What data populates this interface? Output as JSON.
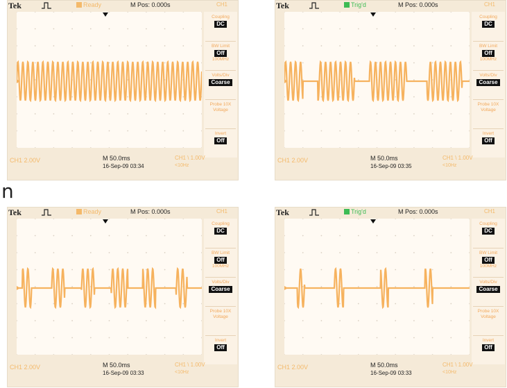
{
  "side_letter": "n",
  "colors": {
    "trace": "#f6b25e",
    "grid_dots": "#d9cfc2",
    "trig_ready": "#f4b96a",
    "trig_triggered": "#3dbb54"
  },
  "scopes": [
    {
      "brand": "Tek",
      "trigger_status": "Ready",
      "trigger_state": "ready",
      "mpos": "M Pos: 0.000s",
      "ch_title": "CH1",
      "menu": [
        {
          "label": "Coupling",
          "value": "DC"
        },
        {
          "label": "BW Limit",
          "value": "Off",
          "sub": "100MHz"
        },
        {
          "label": "Volts/Div",
          "value": "Coarse"
        },
        {
          "label": "Probe 10X Voltage",
          "value": ""
        },
        {
          "label": "Invert",
          "value": "Off"
        }
      ],
      "ch_scale": "CH1 2.00V",
      "time_scale": "M 50.0ms",
      "datetime": "16-Sep-09 03:34",
      "trig_info": "CH1 \\ 1.00V",
      "freq": "<10Hz",
      "waveform_bursts": [
        [
          0,
          1
        ]
      ]
    },
    {
      "brand": "Tek",
      "trigger_status": "Trig'd",
      "trigger_state": "triggered",
      "mpos": "M Pos: 0.000s",
      "ch_title": "CH1",
      "menu": [
        {
          "label": "Coupling",
          "value": "DC"
        },
        {
          "label": "BW Limit",
          "value": "Off",
          "sub": "100MHz"
        },
        {
          "label": "Volts/Div",
          "value": "Coarse"
        },
        {
          "label": "Probe 10X Voltage",
          "value": ""
        },
        {
          "label": "Invert",
          "value": "Off"
        }
      ],
      "ch_scale": "CH1 2.00V",
      "time_scale": "M 50.0ms",
      "datetime": "16-Sep-09 03:35",
      "trig_info": "CH1 \\ 1.00V",
      "freq": "<10Hz",
      "waveform_bursts": [
        [
          0.0,
          0.1
        ],
        [
          0.18,
          0.38
        ],
        [
          0.46,
          0.66
        ],
        [
          0.77,
          0.96
        ]
      ]
    },
    {
      "brand": "Tek",
      "trigger_status": "Ready",
      "trigger_state": "ready",
      "mpos": "M Pos: 0.000s",
      "ch_title": "CH1",
      "menu": [
        {
          "label": "Coupling",
          "value": "DC"
        },
        {
          "label": "BW Limit",
          "value": "Off",
          "sub": "100MHz"
        },
        {
          "label": "Volts/Div",
          "value": "Coarse"
        },
        {
          "label": "Probe 10X Voltage",
          "value": ""
        },
        {
          "label": "Invert",
          "value": "Off"
        }
      ],
      "ch_scale": "CH1 2.00V",
      "time_scale": "M 50.0ms",
      "datetime": "16-Sep-09 03:33",
      "trig_info": "CH1 \\ 1.00V",
      "freq": "<10Hz",
      "waveform_bursts": [
        [
          0.03,
          0.08
        ],
        [
          0.19,
          0.26
        ],
        [
          0.35,
          0.42
        ],
        [
          0.51,
          0.6
        ],
        [
          0.68,
          0.75
        ],
        [
          0.86,
          0.92
        ]
      ]
    },
    {
      "brand": "Tek",
      "trigger_status": "Trig'd",
      "trigger_state": "triggered",
      "mpos": "M Pos: 0.000s",
      "ch_title": "CH1",
      "menu": [
        {
          "label": "Coupling",
          "value": "DC"
        },
        {
          "label": "BW Limit",
          "value": "Off",
          "sub": "100MHz"
        },
        {
          "label": "Volts/Div",
          "value": "Coarse"
        },
        {
          "label": "Probe 10X Voltage",
          "value": ""
        },
        {
          "label": "Invert",
          "value": "Off"
        }
      ],
      "ch_scale": "CH1 2.00V",
      "time_scale": "M 50.0ms",
      "datetime": "16-Sep-09 03:33",
      "trig_info": "CH1 \\ 1.00V",
      "freq": "<10Hz",
      "waveform_bursts": [
        [
          0.07,
          0.11
        ],
        [
          0.27,
          0.32
        ],
        [
          0.52,
          0.56
        ],
        [
          0.76,
          0.8
        ]
      ]
    }
  ]
}
